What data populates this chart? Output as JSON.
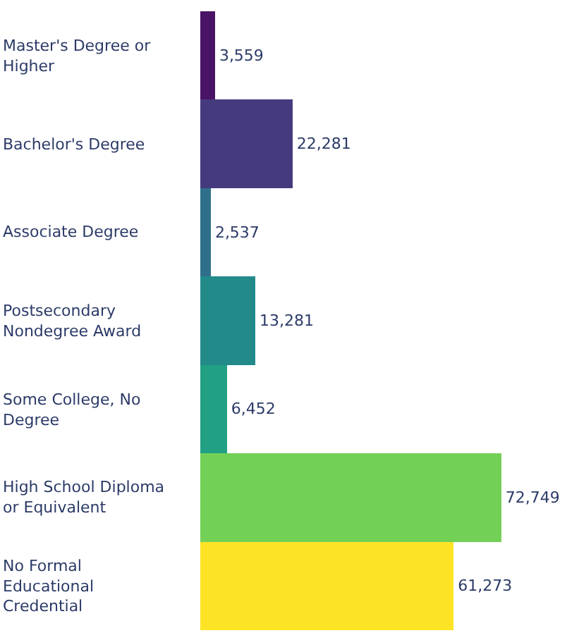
{
  "chart_data": {
    "type": "bar",
    "orientation": "horizontal",
    "categories": [
      "Master's Degree or Higher",
      "Bachelor's Degree",
      "Associate Degree",
      "Postsecondary Nondegree Award",
      "Some College, No Degree",
      "High School Diploma or Equivalent",
      "No Formal Educational Credential"
    ],
    "values": [
      3559,
      22281,
      2537,
      13281,
      6452,
      72749,
      61273
    ],
    "colors": [
      "#4a1466",
      "#463a7e",
      "#2f6f8b",
      "#238a8a",
      "#21a083",
      "#73d056",
      "#fde325"
    ],
    "value_labels": [
      "3,559",
      "22,281",
      "2,537",
      "13,281",
      "6,452",
      "72,749",
      "61,273"
    ]
  }
}
